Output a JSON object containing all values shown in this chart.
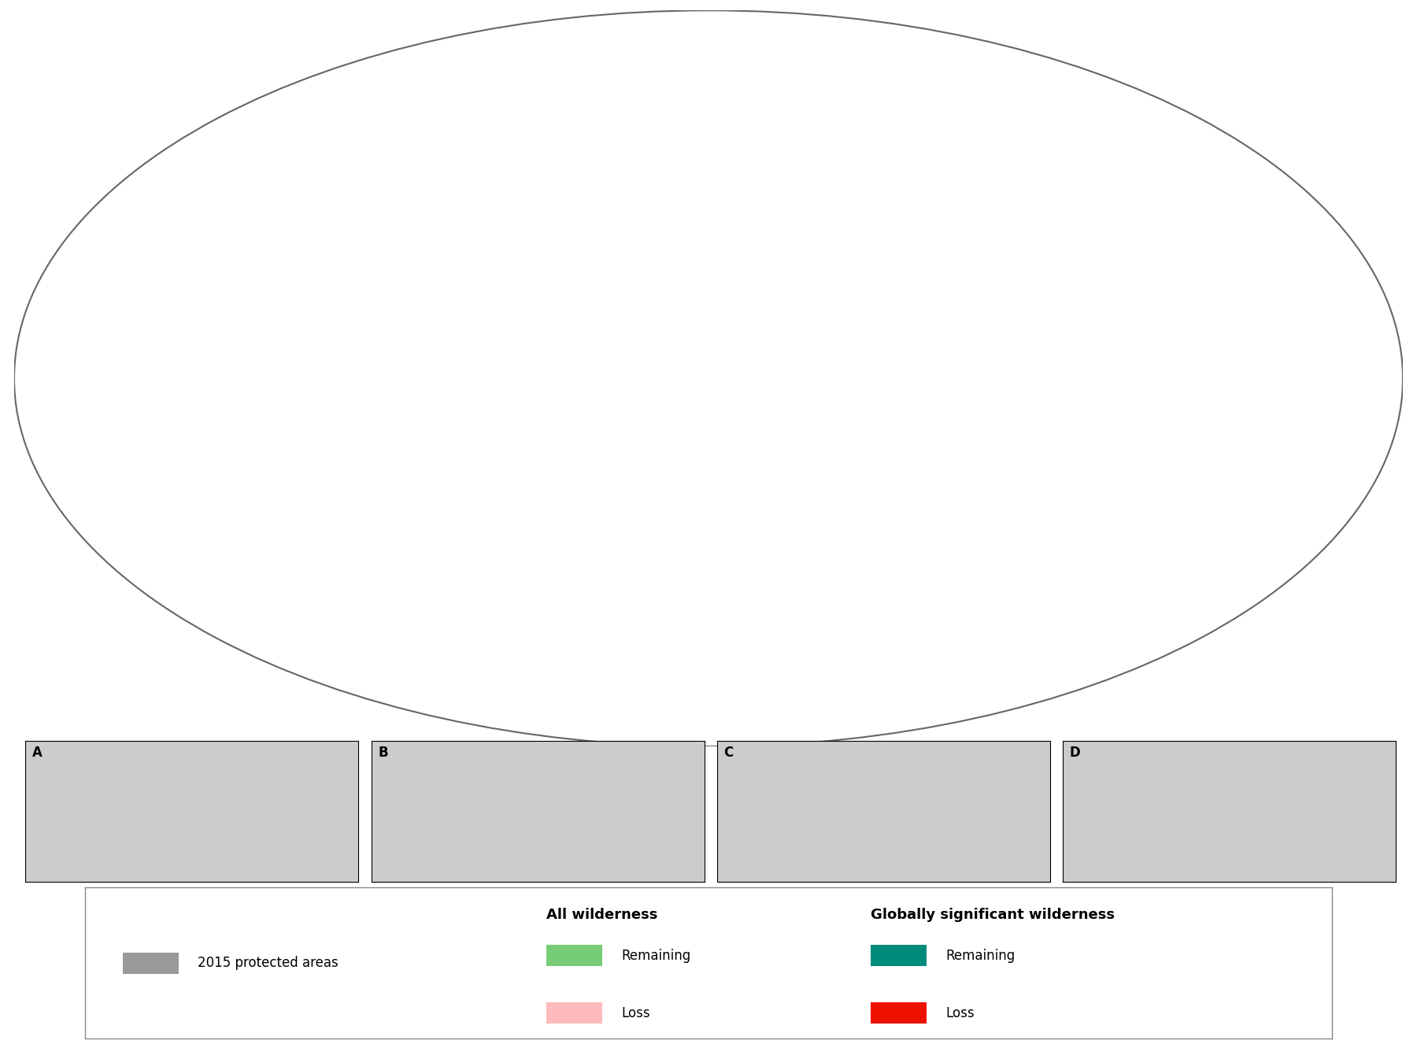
{
  "background_color": "#ffffff",
  "land_color": "#cccccc",
  "ocean_color": "#ffffff",
  "colors": {
    "protected_areas": "#999999",
    "all_remaining": "#77cc77",
    "all_loss": "#ffbbbb",
    "gsw_remaining": "#008b7a",
    "gsw_loss": "#ee1100"
  },
  "legend": {
    "protected_label": "2015 protected areas",
    "col2_header": "All wilderness",
    "col3_header": "Globally significant wilderness",
    "remaining_label": "Remaining",
    "loss_label": "Loss"
  },
  "inset_labels": [
    "A",
    "B",
    "C",
    "D"
  ],
  "map_ellipse_color": "#666666",
  "border_color": "#888888"
}
